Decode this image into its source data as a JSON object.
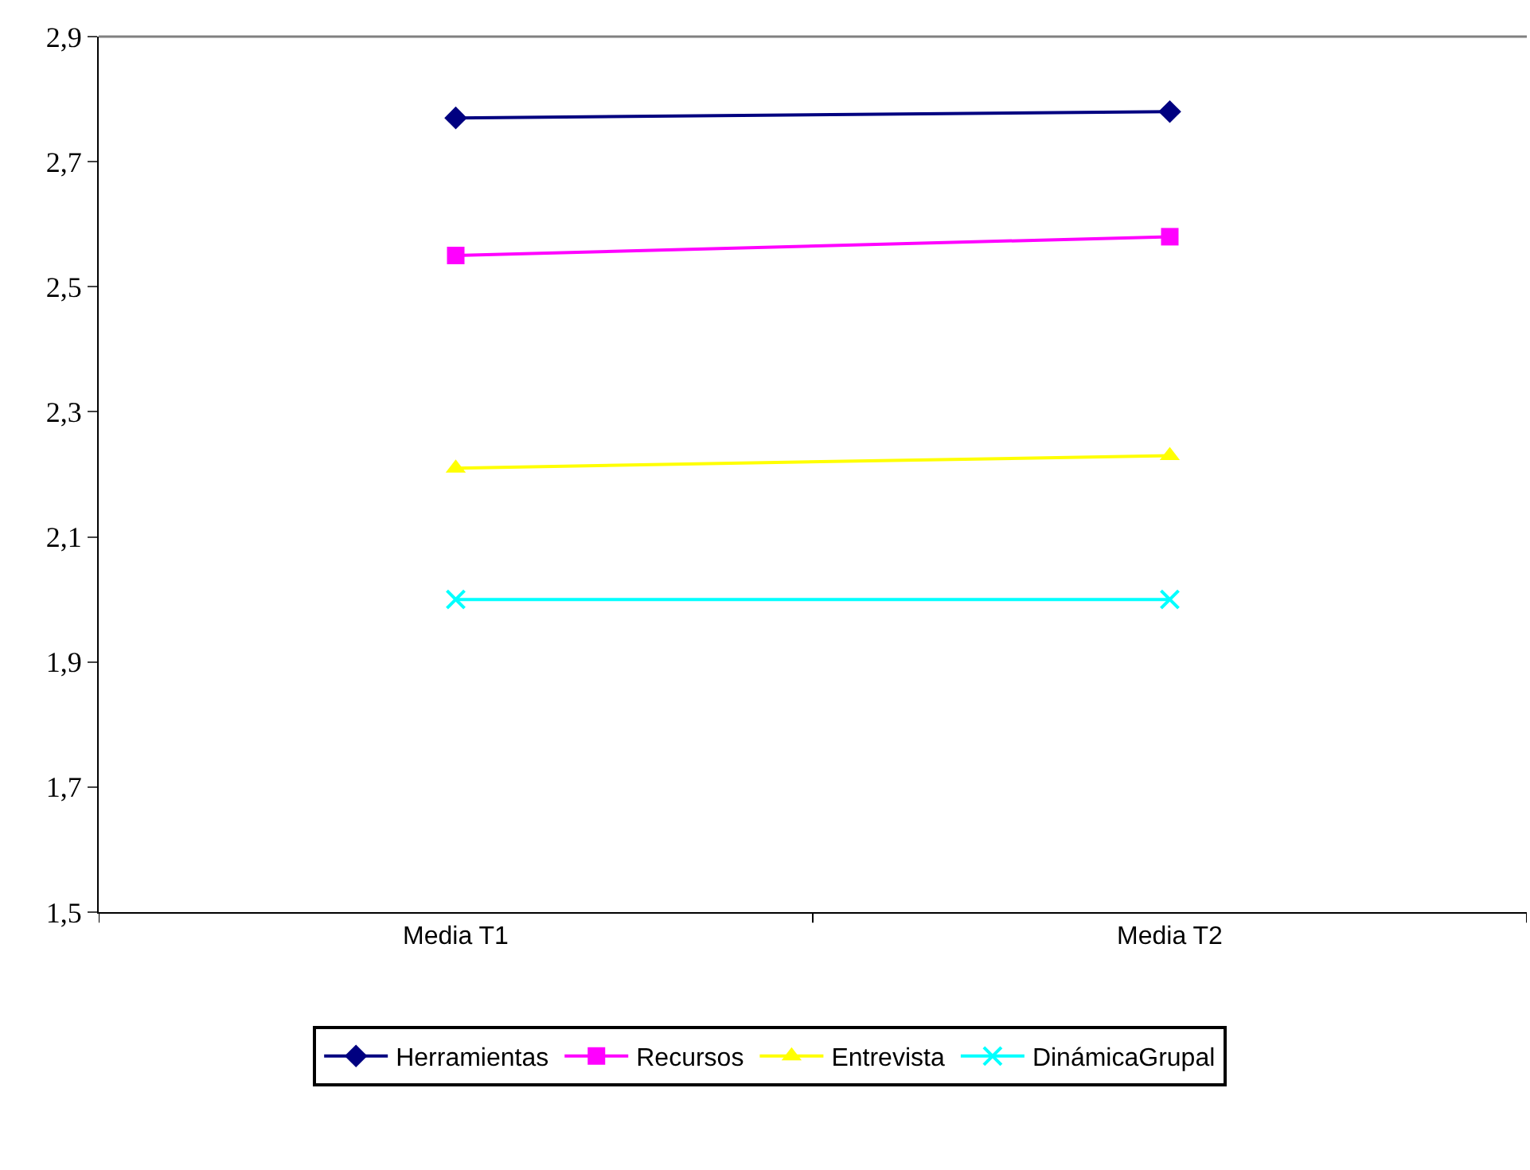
{
  "chart_data": {
    "type": "line",
    "categories": [
      "Media T1",
      "Media T2"
    ],
    "series": [
      {
        "name": "Herramientas",
        "color": "#000080",
        "marker": "diamond",
        "values": [
          2.77,
          2.78
        ]
      },
      {
        "name": "Recursos",
        "color": "#ff00ff",
        "marker": "square",
        "values": [
          2.55,
          2.58
        ]
      },
      {
        "name": "Entrevista",
        "color": "#ffff00",
        "marker": "triangle",
        "values": [
          2.21,
          2.23
        ]
      },
      {
        "name": "DinámicaGrupal",
        "color": "#00ffff",
        "marker": "cross",
        "values": [
          2.0,
          2.0
        ]
      }
    ],
    "ylim": [
      1.5,
      2.9
    ],
    "yticks": [
      {
        "value": 1.5,
        "label": "1,5"
      },
      {
        "value": 1.7,
        "label": "1,7"
      },
      {
        "value": 1.9,
        "label": "1,9"
      },
      {
        "value": 2.1,
        "label": "2,1"
      },
      {
        "value": 2.3,
        "label": "2,3"
      },
      {
        "value": 2.5,
        "label": "2,5"
      },
      {
        "value": 2.7,
        "label": "2,7"
      },
      {
        "value": 2.9,
        "label": "2,9"
      }
    ],
    "grid": false,
    "legend": "bottom"
  }
}
